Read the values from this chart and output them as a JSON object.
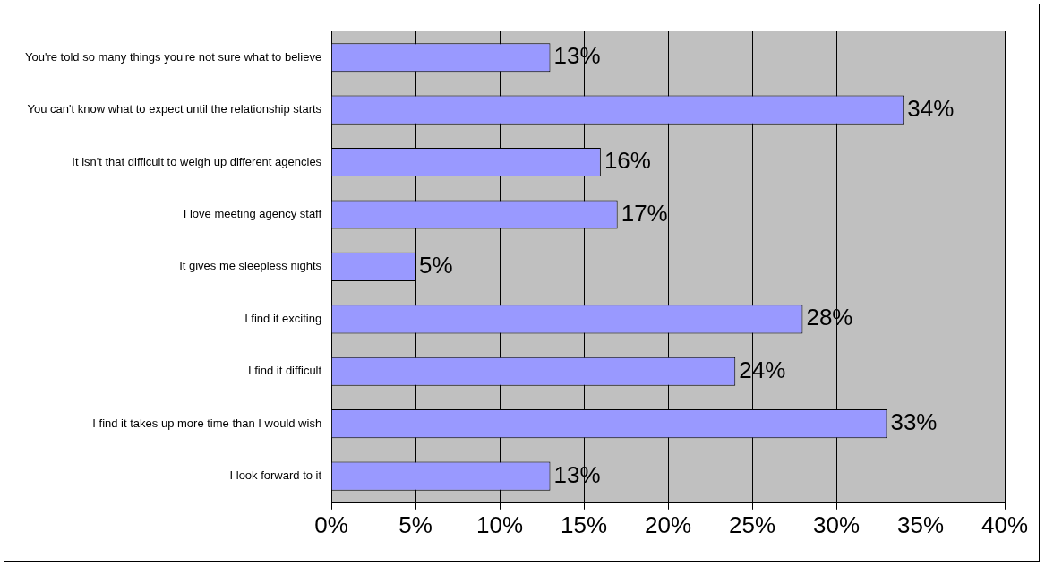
{
  "chart_data": {
    "type": "bar",
    "orientation": "horizontal",
    "categories": [
      "You're told so many things you're not sure what to believe",
      "You can't know what to expect until the relationship starts",
      "It isn't that difficult to weigh up different agencies",
      "I love meeting agency staff",
      "It gives me sleepless nights",
      "I find it exciting",
      "I find it difficult",
      "I find it takes up more time than I would wish",
      "I look forward to it"
    ],
    "values": [
      13,
      34,
      16,
      17,
      5,
      28,
      24,
      33,
      13
    ],
    "value_labels": [
      "13%",
      "34%",
      "16%",
      "17%",
      "5%",
      "28%",
      "24%",
      "33%",
      "13%"
    ],
    "color": "#9999ff",
    "xlim": [
      0,
      40
    ],
    "xticks": [
      {
        "value": 0,
        "label": "0%"
      },
      {
        "value": 5,
        "label": "5%"
      },
      {
        "value": 10,
        "label": "10%"
      },
      {
        "value": 15,
        "label": "15%"
      },
      {
        "value": 20,
        "label": "20%"
      },
      {
        "value": 25,
        "label": "25%"
      },
      {
        "value": 30,
        "label": "30%"
      },
      {
        "value": 35,
        "label": "35%"
      },
      {
        "value": 40,
        "label": "40%"
      }
    ],
    "grid": "x",
    "legend": false
  }
}
